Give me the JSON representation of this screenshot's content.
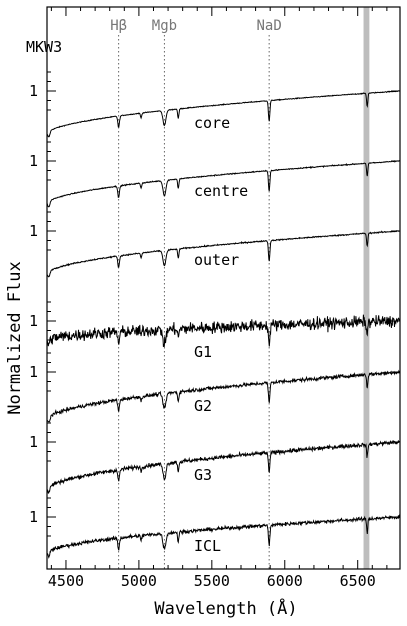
{
  "chart_data": {
    "type": "line",
    "panel_label": "MKW3",
    "xlabel": "Wavelength (Å)",
    "ylabel": "Normalized Flux",
    "xlim": [
      4370,
      6790
    ],
    "x_ticks": [
      4500,
      5000,
      5500,
      6000,
      6500
    ],
    "lines": [
      {
        "label": "Hβ",
        "x": 4861
      },
      {
        "label": "Mgb",
        "x": 5175
      },
      {
        "label": "NaD",
        "x": 5893
      }
    ],
    "shaded_band": [
      6540,
      6580
    ],
    "series": [
      {
        "name": "core",
        "level_label": "1",
        "noise": 0.004,
        "ampLow": 0.45,
        "ampHigh": 0.05
      },
      {
        "name": "centre",
        "level_label": "1",
        "noise": 0.005,
        "ampLow": 0.45,
        "ampHigh": 0.05
      },
      {
        "name": "outer",
        "level_label": "1",
        "noise": 0.006,
        "ampLow": 0.45,
        "ampHigh": 0.05
      },
      {
        "name": "G1",
        "level_label": "1",
        "noise": 0.06,
        "ampLow": 0.2,
        "ampHigh": 0.05
      },
      {
        "name": "G2",
        "level_label": "1",
        "noise": 0.018,
        "ampLow": 0.5,
        "ampHigh": 0.05
      },
      {
        "name": "G3",
        "level_label": "1",
        "noise": 0.02,
        "ampLow": 0.5,
        "ampHigh": 0.05
      },
      {
        "name": "ICL",
        "level_label": "1",
        "noise": 0.018,
        "ampLow": 0.38,
        "ampHigh": 0.05
      }
    ]
  }
}
